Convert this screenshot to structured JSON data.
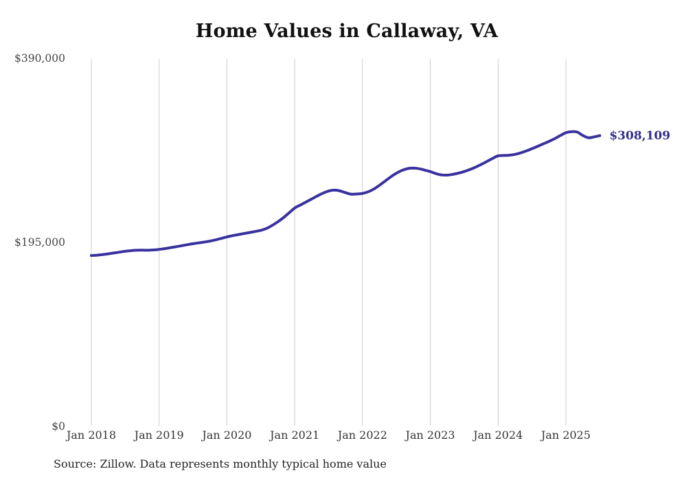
{
  "title": "Home Values in Callaway, VA",
  "source_note": "Source: Zillow. Data represents monthly typical home value",
  "colors": {
    "line": "#39329e",
    "end_label": "#332d8c",
    "grid": "#cccccc",
    "title_text": "#111111",
    "axis_text": "#444444"
  },
  "chart_data": {
    "type": "line",
    "title": "Home Values in Callaway, VA",
    "xlabel": "",
    "ylabel": "",
    "ylim": [
      0,
      390000
    ],
    "grid": "vertical-only",
    "legend": "none",
    "x_start_month": "Jan 2018",
    "x_end_month": "Jul 2025",
    "y_ticks": [
      {
        "label": "$0",
        "value": 0
      },
      {
        "label": "$195,000",
        "value": 195000
      },
      {
        "label": "$390,000",
        "value": 390000
      }
    ],
    "x_ticks": [
      {
        "label": "Jan 2018",
        "month_index": 0
      },
      {
        "label": "Jan 2019",
        "month_index": 12
      },
      {
        "label": "Jan 2020",
        "month_index": 24
      },
      {
        "label": "Jan 2021",
        "month_index": 36
      },
      {
        "label": "Jan 2022",
        "month_index": 48
      },
      {
        "label": "Jan 2023",
        "month_index": 60
      },
      {
        "label": "Jan 2024",
        "month_index": 72
      },
      {
        "label": "Jan 2025",
        "month_index": 84
      }
    ],
    "annotation": {
      "text": "$308,109",
      "value": 308109
    },
    "series": [
      {
        "name": "Monthly typical home value",
        "values": [
          181100,
          181500,
          182100,
          182900,
          183800,
          184700,
          185600,
          186300,
          186700,
          186800,
          186700,
          187000,
          187600,
          188400,
          189400,
          190400,
          191500,
          192600,
          193600,
          194500,
          195400,
          196400,
          197700,
          199200,
          200800,
          202100,
          203300,
          204400,
          205500,
          206600,
          207800,
          209800,
          213000,
          216800,
          221200,
          226300,
          231400,
          234600,
          237800,
          241000,
          244200,
          247200,
          249400,
          250400,
          249600,
          247700,
          246100,
          246300,
          246900,
          248600,
          251500,
          255500,
          260000,
          264400,
          268300,
          271300,
          273200,
          273700,
          273100,
          271600,
          270000,
          267900,
          266500,
          266300,
          267100,
          268400,
          270100,
          272200,
          274700,
          277600,
          280700,
          283900,
          286700,
          287100,
          287400,
          288300,
          289900,
          291900,
          294300,
          296800,
          299400,
          302000,
          304900,
          308200,
          311200,
          312400,
          311900,
          308300,
          305900,
          306800,
          308109
        ]
      }
    ]
  }
}
